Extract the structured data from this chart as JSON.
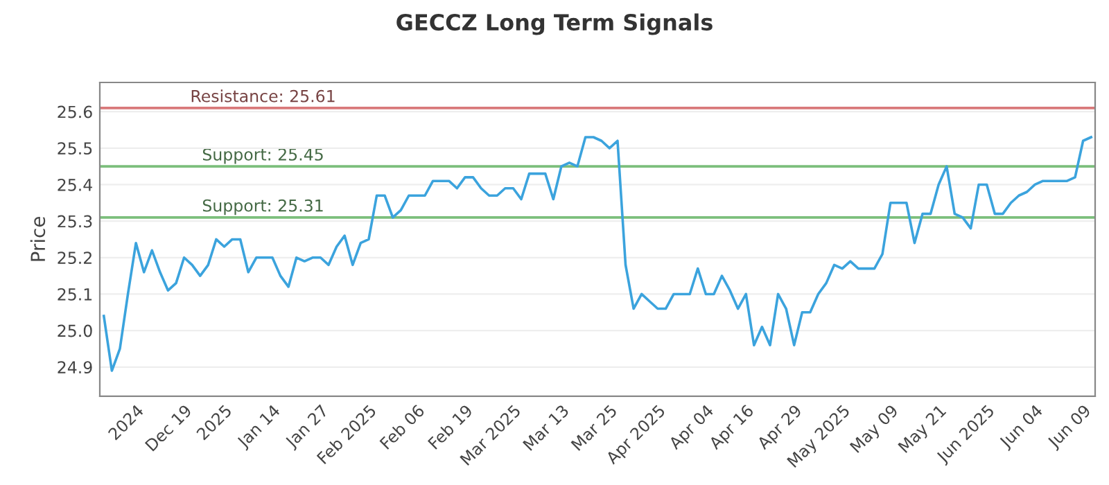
{
  "chart_data": {
    "type": "line",
    "title": "GECCZ Long Term Signals",
    "ylabel": "Price",
    "categories": [
      null,
      null,
      null,
      null,
      "2024",
      null,
      null,
      null,
      null,
      null,
      "Dec 19",
      null,
      null,
      null,
      null,
      "2025",
      null,
      null,
      null,
      null,
      null,
      "Jan 14",
      null,
      null,
      null,
      null,
      null,
      "Jan 27",
      null,
      null,
      null,
      null,
      null,
      "Feb 2025",
      null,
      null,
      null,
      null,
      null,
      "Feb 06",
      null,
      null,
      null,
      null,
      null,
      "Feb 19",
      null,
      null,
      null,
      null,
      null,
      "Mar 2025",
      null,
      null,
      null,
      null,
      null,
      "Mar 13",
      null,
      null,
      null,
      null,
      null,
      "Mar 25",
      null,
      null,
      null,
      null,
      null,
      "Apr 2025",
      null,
      null,
      null,
      null,
      null,
      "Apr 04",
      null,
      null,
      null,
      null,
      "Apr 16",
      null,
      null,
      null,
      null,
      null,
      "Apr 29",
      null,
      null,
      null,
      null,
      null,
      "May 2025",
      null,
      null,
      null,
      null,
      null,
      "May 09",
      null,
      null,
      null,
      null,
      null,
      "May 21",
      null,
      null,
      null,
      null,
      null,
      "Jun 2025",
      null,
      null,
      null,
      null,
      null,
      "Jun 04",
      null,
      null,
      null,
      null,
      null,
      "Jun 09",
      null
    ],
    "series": [
      {
        "color": "#3ba3dd",
        "values": [
          25.04,
          24.89,
          24.95,
          25.1,
          25.24,
          25.16,
          25.22,
          25.16,
          25.11,
          25.13,
          25.2,
          25.18,
          25.15,
          25.18,
          25.25,
          25.23,
          25.25,
          25.25,
          25.16,
          25.2,
          25.2,
          25.2,
          25.15,
          25.12,
          25.2,
          25.19,
          25.2,
          25.2,
          25.18,
          25.23,
          25.26,
          25.18,
          25.24,
          25.25,
          25.37,
          25.37,
          25.31,
          25.33,
          25.37,
          25.37,
          25.37,
          25.41,
          25.41,
          25.41,
          25.39,
          25.42,
          25.42,
          25.39,
          25.37,
          25.37,
          25.39,
          25.39,
          25.36,
          25.43,
          25.43,
          25.43,
          25.36,
          25.45,
          25.46,
          25.45,
          25.53,
          25.53,
          25.52,
          25.5,
          25.52,
          25.18,
          25.06,
          25.1,
          25.08,
          25.06,
          25.06,
          25.1,
          25.1,
          25.1,
          25.17,
          25.1,
          25.1,
          25.15,
          25.11,
          25.06,
          25.1,
          24.96,
          25.01,
          24.96,
          25.1,
          25.06,
          24.96,
          25.05,
          25.05,
          25.1,
          25.13,
          25.18,
          25.17,
          25.19,
          25.17,
          25.17,
          25.17,
          25.21,
          25.35,
          25.35,
          25.35,
          25.24,
          25.32,
          25.32,
          25.4,
          25.45,
          25.32,
          25.31,
          25.28,
          25.4,
          25.4,
          25.32,
          25.32,
          25.35,
          25.37,
          25.38,
          25.4,
          25.41,
          25.41,
          25.41,
          25.41,
          25.42,
          25.52,
          25.53
        ]
      }
    ],
    "ylim": [
      24.82,
      25.68
    ],
    "yticks": [
      24.9,
      {
        "value": 25.0,
        "label": "25.0"
      },
      25.1,
      25.2,
      25.3,
      25.4,
      25.5,
      25.6
    ],
    "grid": "y",
    "marker": "none",
    "line_style": "solid",
    "ref_lines": [
      {
        "axis": "y",
        "value": 25.61,
        "label": "Resistance: 25.61",
        "color": "#d9797a"
      },
      {
        "axis": "y",
        "value": 25.45,
        "label": "Support: 25.45",
        "color": "#7cbf7c"
      },
      {
        "axis": "y",
        "value": 25.31,
        "label": "Support: 25.31",
        "color": "#7cbf7c"
      }
    ]
  }
}
